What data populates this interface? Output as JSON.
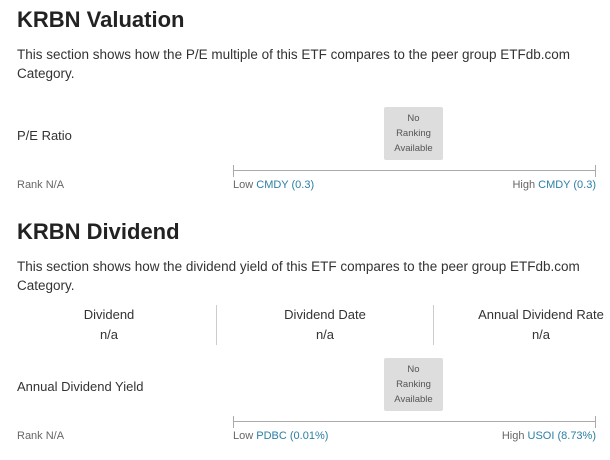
{
  "valuation": {
    "title": "KRBN Valuation",
    "description": "This section shows how the P/E multiple of this ETF compares to the peer group ETFdb.com Category.",
    "metric": {
      "label": "P/E Ratio",
      "ranking": [
        "No",
        "Ranking",
        "Available"
      ],
      "rank": "Rank N/A",
      "low": {
        "label": "Low",
        "fund": "CMDY (0.3)"
      },
      "high": {
        "label": "High",
        "fund": "CMDY (0.3)"
      }
    }
  },
  "dividend": {
    "title": "KRBN Dividend",
    "description": "This section shows how the dividend yield of this ETF compares to the peer group ETFdb.com Category.",
    "columns": [
      {
        "label": "Dividend",
        "value": "n/a"
      },
      {
        "label": "Dividend Date",
        "value": "n/a"
      },
      {
        "label": "Annual Dividend Rate",
        "value": "n/a"
      }
    ],
    "metric": {
      "label": "Annual Dividend Yield",
      "ranking": [
        "No",
        "Ranking",
        "Available"
      ],
      "rank": "Rank N/A",
      "low": {
        "label": "Low",
        "fund": "PDBC (0.01%)"
      },
      "high": {
        "label": "High",
        "fund": "USOI (8.73%)"
      }
    }
  }
}
